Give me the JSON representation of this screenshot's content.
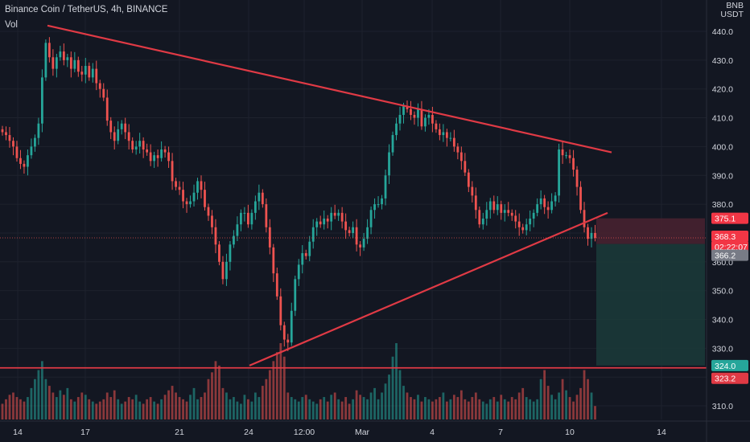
{
  "header": {
    "symbol": "Binance Coin / TetherUS, 4h, BINANCE",
    "indicator": "Vol",
    "currency_top": "BNB",
    "currency_bottom": "USDT"
  },
  "colors": {
    "background": "#131722",
    "up": "#26a69a",
    "down": "#ef5350",
    "trendline": "#e03a45",
    "target_zone": "#1b3b3a",
    "stop_zone": "#4a2230"
  },
  "chart_data": {
    "type": "candlestick",
    "title": "Binance Coin / TetherUS, 4h, BINANCE",
    "ylabel": "USDT",
    "ylim": [
      303,
      450
    ],
    "y_ticks": [
      310,
      320,
      330,
      340,
      350,
      360,
      370,
      380,
      390,
      400,
      410,
      420,
      430,
      440
    ],
    "x_ticks": [
      "14",
      "17",
      "21",
      "24",
      "12:00",
      "Mar",
      "4",
      "7",
      "10",
      "14"
    ],
    "grid": true,
    "legend": "none",
    "candles": [
      405,
      404,
      402,
      400,
      396,
      394,
      393,
      397,
      400,
      403,
      408,
      424,
      436,
      431,
      427,
      431,
      433,
      430,
      431,
      427,
      430,
      426,
      425,
      428,
      424,
      427,
      422,
      420,
      417,
      409,
      405,
      402,
      406,
      408,
      405,
      402,
      399,
      400,
      402,
      399,
      398,
      395,
      397,
      396,
      399,
      398,
      395,
      388,
      386,
      385,
      381,
      380,
      381,
      384,
      388,
      385,
      379,
      376,
      372,
      366,
      360,
      354,
      360,
      366,
      369,
      373,
      377,
      377,
      373,
      377,
      381,
      384,
      380,
      372,
      365,
      356,
      348,
      338,
      333,
      332,
      343,
      354,
      359,
      363,
      362,
      367,
      372,
      374,
      373,
      375,
      374,
      377,
      376,
      377,
      374,
      371,
      370,
      372,
      366,
      365,
      368,
      372,
      378,
      380,
      380,
      382,
      390,
      398,
      404,
      408,
      411,
      414,
      413,
      411,
      410,
      413,
      407,
      410,
      411,
      408,
      406,
      404,
      405,
      403,
      403,
      400,
      398,
      395,
      391,
      386,
      383,
      378,
      373,
      375,
      378,
      381,
      378,
      380,
      377,
      378,
      377,
      376,
      374,
      372,
      371,
      373,
      375,
      377,
      380,
      382,
      379,
      378,
      381,
      383,
      399,
      397,
      397,
      396,
      392,
      386,
      378,
      372,
      368,
      370,
      368.3
    ],
    "volume": [
      7,
      9,
      11,
      12,
      10,
      9,
      8,
      10,
      14,
      18,
      22,
      26,
      18,
      15,
      12,
      10,
      13,
      11,
      14,
      9,
      8,
      10,
      12,
      11,
      9,
      8,
      7,
      8,
      9,
      12,
      10,
      13,
      9,
      7,
      8,
      10,
      9,
      11,
      8,
      7,
      9,
      10,
      8,
      7,
      9,
      11,
      13,
      15,
      12,
      10,
      9,
      8,
      11,
      14,
      9,
      10,
      12,
      18,
      21,
      26,
      24,
      14,
      12,
      9,
      10,
      8,
      7,
      11,
      9,
      8,
      12,
      10,
      15,
      18,
      22,
      26,
      30,
      34,
      28,
      12,
      10,
      9,
      8,
      10,
      11,
      9,
      8,
      7,
      9,
      10,
      8,
      11,
      12,
      9,
      8,
      10,
      7,
      9,
      13,
      11,
      10,
      9,
      12,
      14,
      9,
      12,
      16,
      20,
      28,
      34,
      22,
      15,
      12,
      10,
      9,
      11,
      8,
      10,
      9,
      8,
      9,
      10,
      12,
      8,
      9,
      11,
      10,
      13,
      9,
      8,
      10,
      12,
      9,
      8,
      7,
      9,
      10,
      8,
      11,
      9,
      8,
      10,
      9,
      12,
      14,
      10,
      9,
      8,
      9,
      18,
      22,
      15,
      11,
      9,
      12,
      18,
      13,
      10,
      8,
      11,
      14,
      22,
      18,
      12,
      6
    ],
    "trendlines": [
      {
        "from": [
          "Feb 15",
          442
        ],
        "to": [
          "Mar 11",
          398
        ]
      },
      {
        "from": [
          "Feb 24",
          324
        ],
        "to": [
          "Mar 11",
          377
        ]
      }
    ],
    "horizontal_level": 323.2,
    "position": {
      "entry": 366.2,
      "stop": 375.1,
      "target": 324.0
    },
    "price_labels": [
      {
        "text": "375.1",
        "value": 375.1,
        "kind": "stop"
      },
      {
        "text": "368.3",
        "value": 368.3,
        "kind": "last"
      },
      {
        "text": "02:22:07",
        "value": 366.8,
        "kind": "timer"
      },
      {
        "text": "366.2",
        "value": 366.2,
        "kind": "entry"
      },
      {
        "text": "324.0",
        "value": 324.0,
        "kind": "target"
      },
      {
        "text": "323.2",
        "value": 323.2,
        "kind": "level"
      }
    ]
  }
}
